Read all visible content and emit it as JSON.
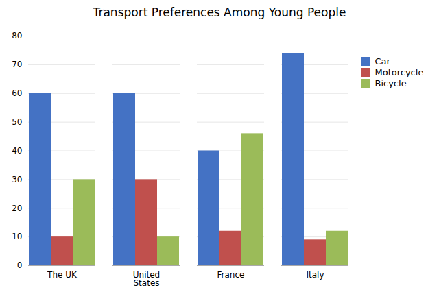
{
  "chart_data": {
    "type": "bar",
    "title": "Transport Preferences Among Young People",
    "categories": [
      "The UK",
      "United\nStates",
      "France",
      "Italy"
    ],
    "series": [
      {
        "name": "Car",
        "color": "#4472C4",
        "values": [
          60,
          60,
          40,
          74
        ]
      },
      {
        "name": "Motorcycle",
        "color": "#C0504D",
        "values": [
          10,
          30,
          12,
          9
        ]
      },
      {
        "name": "Bicycle",
        "color": "#9BBB59",
        "values": [
          30,
          10,
          46,
          12
        ]
      }
    ],
    "ylim": [
      0,
      80
    ],
    "yticks": [
      0,
      10,
      20,
      30,
      40,
      50,
      60,
      70,
      80
    ],
    "grid": true,
    "legend": "right"
  }
}
